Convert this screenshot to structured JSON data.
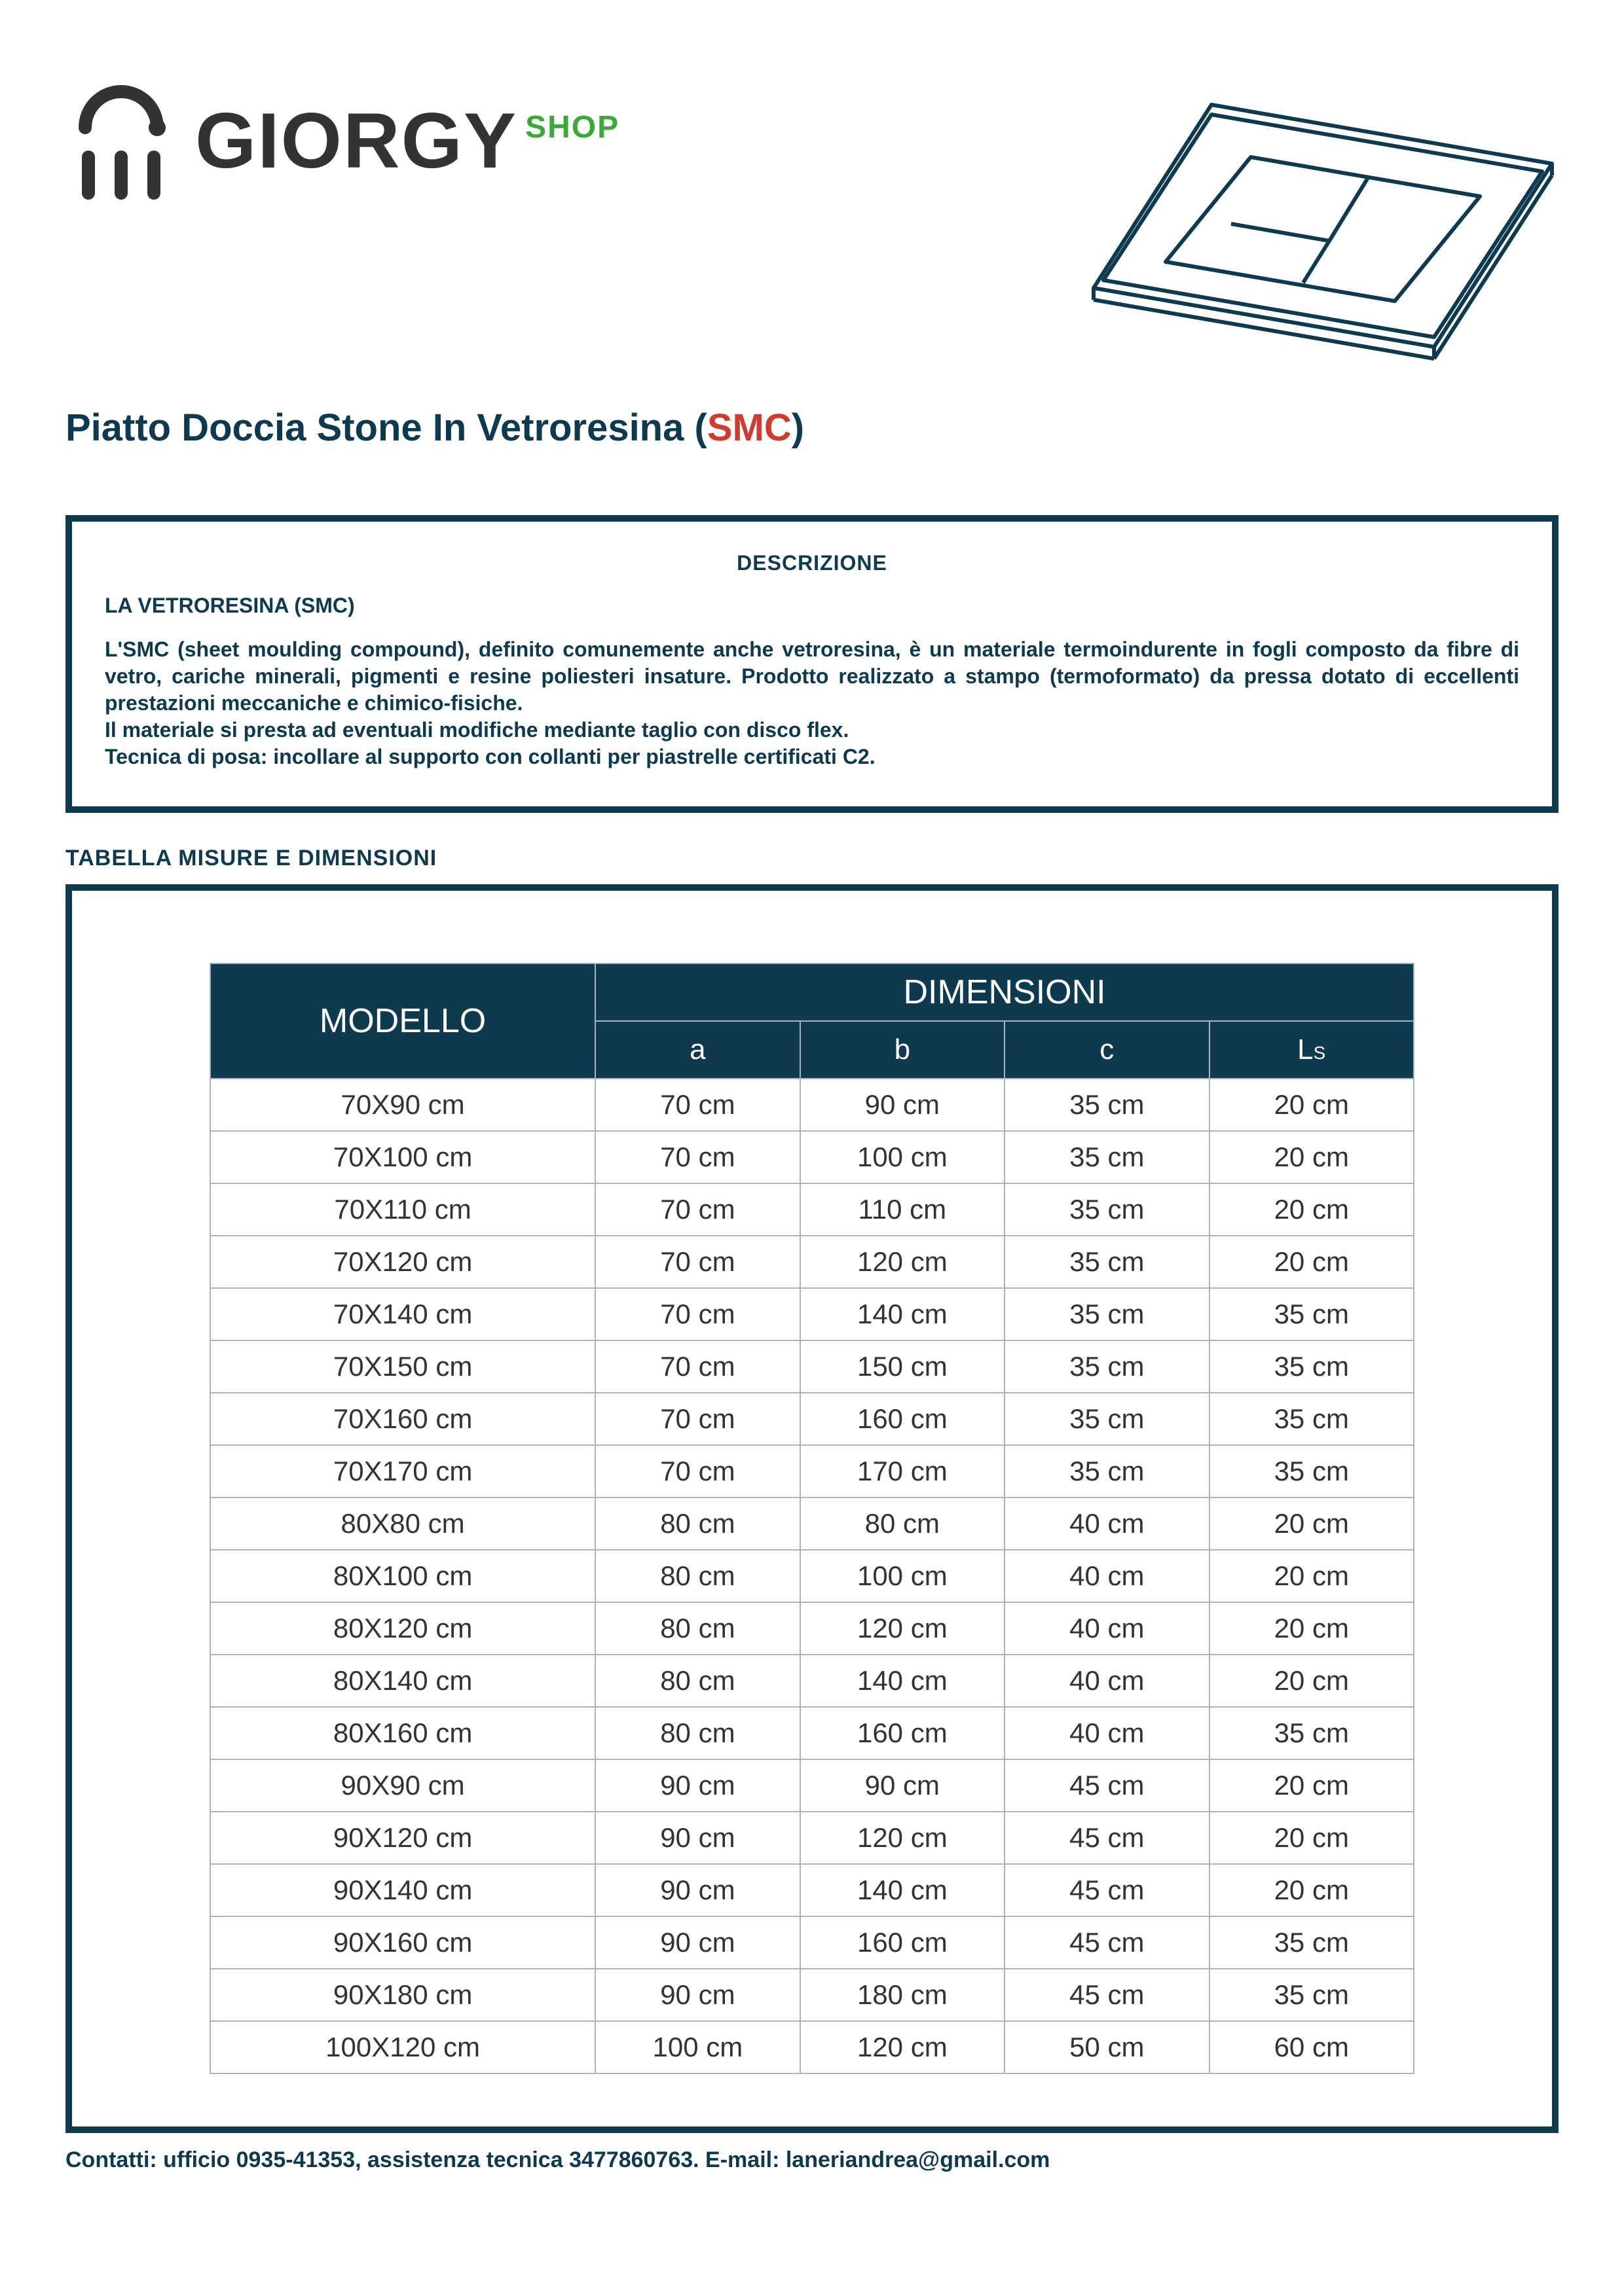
{
  "brand": {
    "name": "GIORGY",
    "suffix": "SHOP"
  },
  "title_pre": "Piatto Doccia Stone In Vetroresina (",
  "title_smc": "SMC",
  "title_post": ")",
  "desc": {
    "heading": "DESCRIZIONE",
    "sub": "LA VETRORESINA (SMC)",
    "body": "L'SMC (sheet moulding compound), definito comunemente anche vetroresina, è un materiale termoindurente in fogli composto da fibre di vetro, cariche minerali, pigmenti e resine poliesteri insature. Prodotto realizzato a stampo (termoformato) da pressa dotato di eccellenti prestazioni meccaniche e chimico-fisiche.\nIl materiale si presta ad eventuali modifiche mediante taglio con disco flex.\nTecnica di posa: incollare al supporto con collanti per piastrelle certificati C2."
  },
  "table_label": "TABELLA MISURE E DIMENSIONI",
  "table": {
    "head_model": "MODELLO",
    "head_dim": "DIMENSIONI",
    "sub_a": "a",
    "sub_b": "b",
    "sub_c": "c",
    "sub_ls_l": "L",
    "sub_ls_s": "S",
    "rows": [
      {
        "m": "70X90 cm",
        "a": "70 cm",
        "b": "90 cm",
        "c": "35 cm",
        "ls": "20 cm"
      },
      {
        "m": "70X100 cm",
        "a": "70 cm",
        "b": "100 cm",
        "c": "35 cm",
        "ls": "20 cm"
      },
      {
        "m": "70X110 cm",
        "a": "70 cm",
        "b": "110 cm",
        "c": "35 cm",
        "ls": "20 cm"
      },
      {
        "m": "70X120 cm",
        "a": "70 cm",
        "b": "120 cm",
        "c": "35 cm",
        "ls": "20 cm"
      },
      {
        "m": "70X140 cm",
        "a": "70 cm",
        "b": "140 cm",
        "c": "35 cm",
        "ls": "35 cm"
      },
      {
        "m": "70X150 cm",
        "a": "70 cm",
        "b": "150 cm",
        "c": "35 cm",
        "ls": "35 cm"
      },
      {
        "m": "70X160 cm",
        "a": "70 cm",
        "b": "160 cm",
        "c": "35 cm",
        "ls": "35 cm"
      },
      {
        "m": "70X170 cm",
        "a": "70 cm",
        "b": "170 cm",
        "c": "35 cm",
        "ls": "35 cm"
      },
      {
        "m": "80X80 cm",
        "a": "80 cm",
        "b": "80 cm",
        "c": "40 cm",
        "ls": "20 cm"
      },
      {
        "m": "80X100 cm",
        "a": "80 cm",
        "b": "100 cm",
        "c": "40 cm",
        "ls": "20 cm"
      },
      {
        "m": "80X120 cm",
        "a": "80 cm",
        "b": "120 cm",
        "c": "40 cm",
        "ls": "20 cm"
      },
      {
        "m": "80X140 cm",
        "a": "80 cm",
        "b": "140 cm",
        "c": "40 cm",
        "ls": "20 cm"
      },
      {
        "m": "80X160 cm",
        "a": "80 cm",
        "b": "160 cm",
        "c": "40 cm",
        "ls": "35 cm"
      },
      {
        "m": "90X90 cm",
        "a": "90 cm",
        "b": "90 cm",
        "c": "45 cm",
        "ls": "20 cm"
      },
      {
        "m": "90X120 cm",
        "a": "90 cm",
        "b": "120 cm",
        "c": "45 cm",
        "ls": "20 cm"
      },
      {
        "m": "90X140 cm",
        "a": "90 cm",
        "b": "140 cm",
        "c": "45 cm",
        "ls": "20 cm"
      },
      {
        "m": "90X160 cm",
        "a": "90 cm",
        "b": "160 cm",
        "c": "45 cm",
        "ls": "35 cm"
      },
      {
        "m": "90X180 cm",
        "a": "90 cm",
        "b": "180 cm",
        "c": "45 cm",
        "ls": "35 cm"
      },
      {
        "m": "100X120 cm",
        "a": "100 cm",
        "b": "120 cm",
        "c": "50 cm",
        "ls": "60 cm"
      }
    ]
  },
  "footer": "Contatti: ufficio 0935-41353, assistenza tecnica 3477860763.  E-mail: laneriandrea@gmail.com",
  "colors": {
    "primary": "#0d3a4f",
    "accent_green": "#3aa935",
    "accent_red": "#d13a2f",
    "text_dark": "#333333",
    "border_gray": "#aab4bb",
    "background": "#ffffff"
  }
}
